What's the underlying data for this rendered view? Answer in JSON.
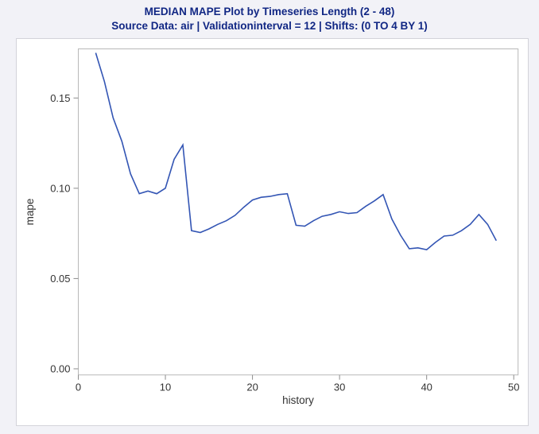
{
  "header": {
    "title": "MEDIAN MAPE Plot by Timeseries Length (2 - 48)",
    "subtitle": "Source Data: air | Validationinterval = 12 | Shifts: (0 TO 4 BY 1)"
  },
  "colors": {
    "title_text": "#112784",
    "line": "#3355B4",
    "page_bg": "#F2F2F7",
    "graph_bg": "#FFFFFF",
    "frame_border": "#D3D3DA",
    "wall_border": "#B8B8B8",
    "tick_mark": "#8C8C8C",
    "tick_label": "#333333"
  },
  "chart_data": {
    "type": "line",
    "title": "MEDIAN MAPE Plot by Timeseries Length (2 - 48)",
    "subtitle": "Source Data: air | Validationinterval = 12 | Shifts: (0 TO 4 BY 1)",
    "xlabel": "history",
    "ylabel": "mape",
    "grid": false,
    "legend": "none",
    "xlim": [
      0,
      50.5
    ],
    "ylim": [
      -0.0034,
      0.1772
    ],
    "x_ticks": [
      0,
      10,
      20,
      30,
      40,
      50
    ],
    "x_tick_labels": [
      "0",
      "10",
      "20",
      "30",
      "40",
      "50"
    ],
    "y_ticks": [
      0.0,
      0.05,
      0.1,
      0.15
    ],
    "y_tick_labels": [
      "0.00",
      "0.05",
      "0.10",
      "0.15"
    ],
    "series_name": "median mape",
    "x": [
      2,
      3,
      4,
      5,
      6,
      7,
      8,
      9,
      10,
      11,
      12,
      13,
      14,
      15,
      16,
      17,
      18,
      19,
      20,
      21,
      22,
      23,
      24,
      25,
      26,
      27,
      28,
      29,
      30,
      31,
      32,
      33,
      34,
      35,
      36,
      37,
      38,
      39,
      40,
      41,
      42,
      43,
      44,
      45,
      46,
      47,
      48
    ],
    "y": [
      0.175,
      0.159,
      0.139,
      0.126,
      0.108,
      0.097,
      0.0985,
      0.097,
      0.1,
      0.116,
      0.124,
      0.0765,
      0.0755,
      0.0775,
      0.08,
      0.082,
      0.085,
      0.0895,
      0.0935,
      0.095,
      0.0955,
      0.0965,
      0.097,
      0.0795,
      0.079,
      0.082,
      0.0845,
      0.0855,
      0.087,
      0.086,
      0.0865,
      0.09,
      0.093,
      0.0965,
      0.083,
      0.074,
      0.0665,
      0.067,
      0.066,
      0.07,
      0.0735,
      0.074,
      0.0765,
      0.08,
      0.0855,
      0.08,
      0.071
    ]
  }
}
